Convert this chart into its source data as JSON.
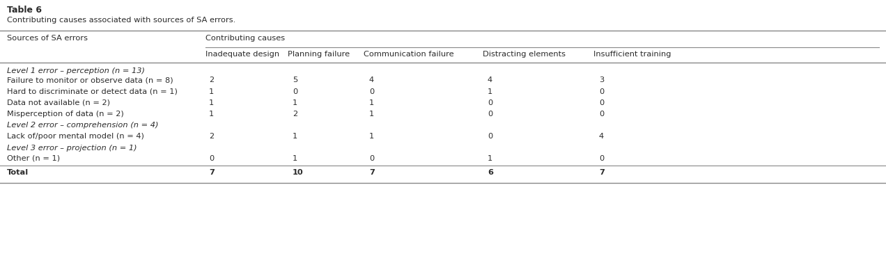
{
  "title": "Table 6",
  "subtitle": "Contributing causes associated with sources of SA errors.",
  "col1_header": "Sources of SA errors",
  "col_group_header": "Contributing causes",
  "col_headers": [
    "Inadequate design",
    "Planning failure",
    "Communication failure",
    "Distracting elements",
    "Insufficient training"
  ],
  "rows": [
    {
      "label": "Level 1 error – perception (n = 13)",
      "italic": true,
      "values": null
    },
    {
      "label": "Failure to monitor or observe data (n = 8)",
      "italic": false,
      "values": [
        "2",
        "5",
        "4",
        "4",
        "3"
      ]
    },
    {
      "label": "Hard to discriminate or detect data (n = 1)",
      "italic": false,
      "values": [
        "1",
        "0",
        "0",
        "1",
        "0"
      ]
    },
    {
      "label": "Data not available (n = 2)",
      "italic": false,
      "values": [
        "1",
        "1",
        "1",
        "0",
        "0"
      ]
    },
    {
      "label": "Misperception of data (n = 2)",
      "italic": false,
      "values": [
        "1",
        "2",
        "1",
        "0",
        "0"
      ]
    },
    {
      "label": "Level 2 error – comprehension (n = 4)",
      "italic": true,
      "values": null
    },
    {
      "label": "Lack of/poor mental model (n = 4)",
      "italic": false,
      "values": [
        "2",
        "1",
        "1",
        "0",
        "4"
      ]
    },
    {
      "label": "Level 3 error – projection (n = 1)",
      "italic": true,
      "values": null
    },
    {
      "label": "Other (n = 1)",
      "italic": false,
      "values": [
        "0",
        "1",
        "0",
        "1",
        "0"
      ]
    },
    {
      "label": "Total",
      "italic": false,
      "bold": true,
      "values": [
        "7",
        "10",
        "7",
        "6",
        "7"
      ]
    }
  ],
  "bg_color": "#ffffff",
  "text_color": "#2b2b2b",
  "line_color": "#888888",
  "font_size": 8.2,
  "title_font_size": 9.0,
  "subtitle_font_size": 8.2
}
